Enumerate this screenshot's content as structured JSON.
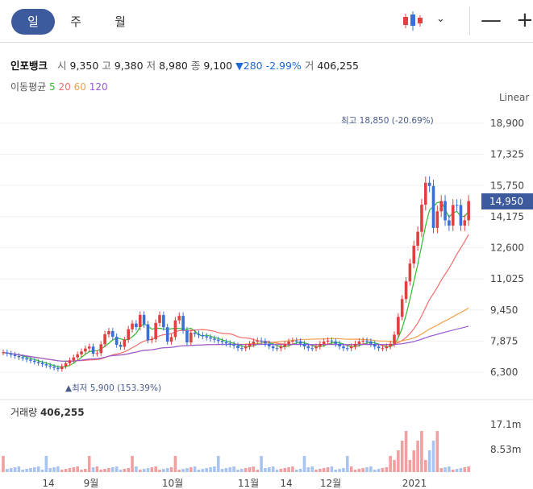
{
  "tabs": [
    {
      "label": "일",
      "active": true
    },
    {
      "label": "주",
      "active": false
    },
    {
      "label": "월",
      "active": false
    }
  ],
  "toolbar": {
    "chart_type_icon": "candlestick-icon",
    "dropdown_icon": "chevron-down-icon",
    "zoom_out": "—",
    "zoom_in": "+"
  },
  "info": {
    "name": "인포뱅크",
    "open_label": "시",
    "open": "9,350",
    "high_label": "고",
    "high": "9,380",
    "low_label": "저",
    "low": "8,980",
    "close_label": "종",
    "close": "9,100",
    "change": "▼280",
    "change_pct": "-2.99%",
    "vol_label": "거",
    "volume": "406,255"
  },
  "ma": {
    "label": "이동평균",
    "p5": "5",
    "p20": "20",
    "p60": "60",
    "p120": "120",
    "colors": {
      "p5": "#2ebd2e",
      "p20": "#f26d6d",
      "p60": "#f0a04b",
      "p120": "#9b59d6"
    }
  },
  "scale_label": "Linear",
  "current_price": "14,950",
  "annotations": {
    "high": "최고 18,850 (-20.69%)",
    "low": "최저 5,900 (153.39%)"
  },
  "volume_panel": {
    "label": "거래량",
    "value": "406,255",
    "ticks": [
      "17.1m",
      "8.53m"
    ]
  },
  "chart_data": {
    "type": "candlestick",
    "y_ticks": [
      "18,900",
      "17,325",
      "15,750",
      "14,175",
      "12,600",
      "11,025",
      "9,450",
      "7,875",
      "6,300"
    ],
    "y_values": [
      18900,
      17325,
      15750,
      14175,
      12600,
      11025,
      9450,
      7875,
      6300
    ],
    "x_ticks": [
      "14",
      "9월",
      "10월",
      "11월",
      "14",
      "12월",
      "2021"
    ],
    "colors": {
      "up": "#e04040",
      "down": "#3a6fd8",
      "vol_up": "#f0a0a0",
      "vol_down": "#a8c4f0"
    }
  }
}
